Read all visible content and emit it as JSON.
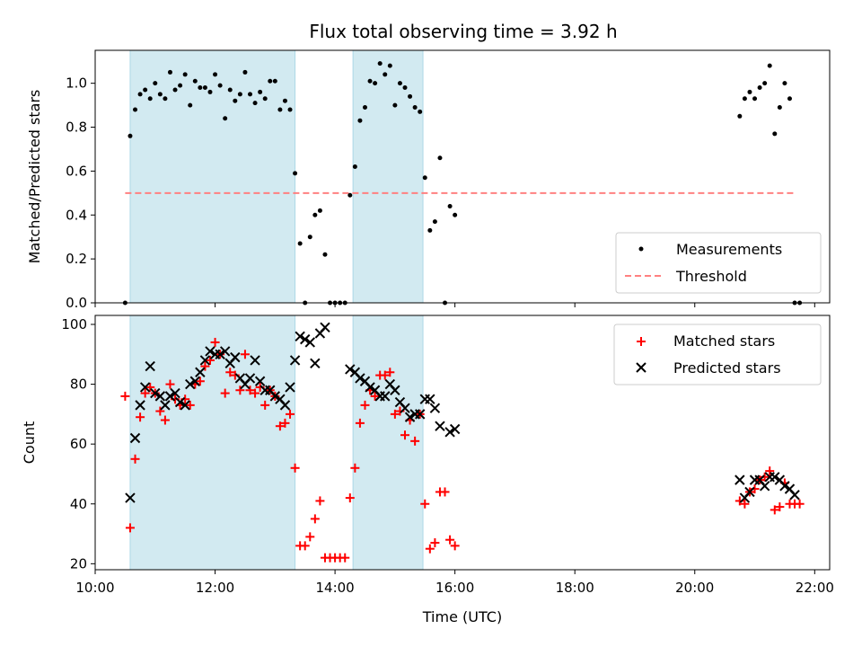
{
  "colors": {
    "band": "#add8e6",
    "threshold": "#ff8080",
    "matched": "#ff0000",
    "predicted": "#000000",
    "measurement": "#000000"
  },
  "chart_data": [
    {
      "type": "scatter",
      "title": "Flux total observing time = 3.92 h",
      "xlabel": "",
      "ylabel": "Matched/Predicted stars",
      "xlim": [
        "10:00",
        "22:15"
      ],
      "ylim": [
        0,
        1.15
      ],
      "yticks": [
        "0.0",
        "0.2",
        "0.4",
        "0.6",
        "0.8",
        "1.0"
      ],
      "legend_position": "lower-right",
      "observing_windows": [
        [
          "10:35",
          "13:20"
        ],
        [
          "14:18",
          "15:28"
        ]
      ],
      "threshold": {
        "name": "Threshold",
        "y": 0.5,
        "x_range": [
          "10:30",
          "21:40"
        ]
      },
      "series": [
        {
          "name": "Measurements",
          "points": [
            [
              "10:30",
              0.0
            ],
            [
              "10:35",
              0.76
            ],
            [
              "10:40",
              0.88
            ],
            [
              "10:45",
              0.95
            ],
            [
              "10:50",
              0.97
            ],
            [
              "10:55",
              0.93
            ],
            [
              "11:00",
              1.0
            ],
            [
              "11:05",
              0.95
            ],
            [
              "11:10",
              0.93
            ],
            [
              "11:15",
              1.05
            ],
            [
              "11:20",
              0.97
            ],
            [
              "11:25",
              0.99
            ],
            [
              "11:30",
              1.04
            ],
            [
              "11:35",
              0.9
            ],
            [
              "11:40",
              1.01
            ],
            [
              "11:45",
              0.98
            ],
            [
              "11:50",
              0.98
            ],
            [
              "11:55",
              0.96
            ],
            [
              "12:00",
              1.04
            ],
            [
              "12:05",
              0.99
            ],
            [
              "12:10",
              0.84
            ],
            [
              "12:15",
              0.97
            ],
            [
              "12:20",
              0.92
            ],
            [
              "12:25",
              0.95
            ],
            [
              "12:30",
              1.05
            ],
            [
              "12:35",
              0.95
            ],
            [
              "12:40",
              0.91
            ],
            [
              "12:45",
              0.96
            ],
            [
              "12:50",
              0.93
            ],
            [
              "12:55",
              1.01
            ],
            [
              "13:00",
              1.01
            ],
            [
              "13:05",
              0.88
            ],
            [
              "13:10",
              0.92
            ],
            [
              "13:15",
              0.88
            ],
            [
              "13:20",
              0.59
            ],
            [
              "13:25",
              0.27
            ],
            [
              "13:30",
              0.0
            ],
            [
              "13:35",
              0.3
            ],
            [
              "13:40",
              0.4
            ],
            [
              "13:45",
              0.42
            ],
            [
              "13:50",
              0.22
            ],
            [
              "13:55",
              0.0
            ],
            [
              "14:00",
              0.0
            ],
            [
              "14:05",
              0.0
            ],
            [
              "14:10",
              0.0
            ],
            [
              "14:15",
              0.49
            ],
            [
              "14:20",
              0.62
            ],
            [
              "14:25",
              0.83
            ],
            [
              "14:30",
              0.89
            ],
            [
              "14:35",
              1.01
            ],
            [
              "14:40",
              1.0
            ],
            [
              "14:45",
              1.09
            ],
            [
              "14:50",
              1.04
            ],
            [
              "14:55",
              1.08
            ],
            [
              "15:00",
              0.9
            ],
            [
              "15:05",
              1.0
            ],
            [
              "15:10",
              0.98
            ],
            [
              "15:15",
              0.94
            ],
            [
              "15:20",
              0.89
            ],
            [
              "15:25",
              0.87
            ],
            [
              "15:30",
              0.57
            ],
            [
              "15:35",
              0.33
            ],
            [
              "15:40",
              0.37
            ],
            [
              "15:45",
              0.66
            ],
            [
              "15:50",
              0.0
            ],
            [
              "15:55",
              0.44
            ],
            [
              "16:00",
              0.4
            ],
            [
              "20:45",
              0.85
            ],
            [
              "20:50",
              0.93
            ],
            [
              "20:55",
              0.96
            ],
            [
              "21:00",
              0.93
            ],
            [
              "21:05",
              0.98
            ],
            [
              "21:10",
              1.0
            ],
            [
              "21:15",
              1.08
            ],
            [
              "21:20",
              0.77
            ],
            [
              "21:25",
              0.89
            ],
            [
              "21:30",
              1.0
            ],
            [
              "21:35",
              0.93
            ],
            [
              "21:40",
              0.0
            ],
            [
              "21:45",
              0.0
            ]
          ]
        }
      ]
    },
    {
      "type": "scatter",
      "title": "",
      "xlabel": "Time (UTC)",
      "ylabel": "Count",
      "xlim": [
        "10:00",
        "22:15"
      ],
      "ylim": [
        18,
        103
      ],
      "xticks": [
        "10:00",
        "12:00",
        "14:00",
        "16:00",
        "18:00",
        "20:00",
        "22:00"
      ],
      "yticks": [
        "20",
        "40",
        "60",
        "80",
        "100"
      ],
      "legend_position": "upper-right",
      "observing_windows": [
        [
          "10:35",
          "13:20"
        ],
        [
          "14:18",
          "15:28"
        ]
      ],
      "series": [
        {
          "name": "Matched stars",
          "marker": "plus",
          "points": [
            [
              "10:30",
              76
            ],
            [
              "10:35",
              32
            ],
            [
              "10:40",
              55
            ],
            [
              "10:45",
              69
            ],
            [
              "10:50",
              77
            ],
            [
              "10:55",
              79
            ],
            [
              "11:00",
              77
            ],
            [
              "11:05",
              71
            ],
            [
              "11:10",
              68
            ],
            [
              "11:15",
              80
            ],
            [
              "11:20",
              75
            ],
            [
              "11:25",
              73
            ],
            [
              "11:30",
              75
            ],
            [
              "11:35",
              73
            ],
            [
              "11:40",
              80
            ],
            [
              "11:45",
              81
            ],
            [
              "11:50",
              86
            ],
            [
              "11:55",
              88
            ],
            [
              "12:00",
              94
            ],
            [
              "12:05",
              90
            ],
            [
              "12:10",
              77
            ],
            [
              "12:15",
              84
            ],
            [
              "12:20",
              83
            ],
            [
              "12:25",
              78
            ],
            [
              "12:30",
              90
            ],
            [
              "12:35",
              78
            ],
            [
              "12:40",
              77
            ],
            [
              "12:45",
              79
            ],
            [
              "12:50",
              73
            ],
            [
              "12:55",
              78
            ],
            [
              "13:00",
              76
            ],
            [
              "13:05",
              66
            ],
            [
              "13:10",
              67
            ],
            [
              "13:15",
              70
            ],
            [
              "13:20",
              52
            ],
            [
              "13:25",
              26
            ],
            [
              "13:30",
              26
            ],
            [
              "13:35",
              29
            ],
            [
              "13:40",
              35
            ],
            [
              "13:45",
              41
            ],
            [
              "13:50",
              22
            ],
            [
              "13:55",
              22
            ],
            [
              "14:00",
              22
            ],
            [
              "14:05",
              22
            ],
            [
              "14:10",
              22
            ],
            [
              "14:15",
              42
            ],
            [
              "14:20",
              52
            ],
            [
              "14:25",
              67
            ],
            [
              "14:30",
              73
            ],
            [
              "14:35",
              78
            ],
            [
              "14:40",
              76
            ],
            [
              "14:45",
              83
            ],
            [
              "14:50",
              83
            ],
            [
              "14:55",
              84
            ],
            [
              "15:00",
              70
            ],
            [
              "15:05",
              71
            ],
            [
              "15:10",
              63
            ],
            [
              "15:15",
              68
            ],
            [
              "15:20",
              61
            ],
            [
              "15:25",
              70
            ],
            [
              "15:30",
              40
            ],
            [
              "15:35",
              25
            ],
            [
              "15:40",
              27
            ],
            [
              "15:45",
              44
            ],
            [
              "15:50",
              44
            ],
            [
              "15:55",
              28
            ],
            [
              "16:00",
              26
            ],
            [
              "20:45",
              41
            ],
            [
              "20:50",
              40
            ],
            [
              "20:55",
              44
            ],
            [
              "21:00",
              45
            ],
            [
              "21:05",
              48
            ],
            [
              "21:10",
              49
            ],
            [
              "21:15",
              51
            ],
            [
              "21:20",
              38
            ],
            [
              "21:25",
              39
            ],
            [
              "21:30",
              47
            ],
            [
              "21:35",
              40
            ],
            [
              "21:40",
              40
            ],
            [
              "21:45",
              40
            ]
          ]
        },
        {
          "name": "Predicted stars",
          "marker": "cross",
          "points": [
            [
              "10:35",
              42
            ],
            [
              "10:40",
              62
            ],
            [
              "10:45",
              73
            ],
            [
              "10:50",
              79
            ],
            [
              "10:55",
              86
            ],
            [
              "11:00",
              77
            ],
            [
              "11:05",
              76
            ],
            [
              "11:10",
              73
            ],
            [
              "11:15",
              76
            ],
            [
              "11:20",
              77
            ],
            [
              "11:25",
              74
            ],
            [
              "11:30",
              73
            ],
            [
              "11:35",
              80
            ],
            [
              "11:40",
              81
            ],
            [
              "11:45",
              84
            ],
            [
              "11:50",
              88
            ],
            [
              "11:55",
              91
            ],
            [
              "12:00",
              90
            ],
            [
              "12:05",
              90
            ],
            [
              "12:10",
              91
            ],
            [
              "12:15",
              87
            ],
            [
              "12:20",
              89
            ],
            [
              "12:25",
              82
            ],
            [
              "12:30",
              80
            ],
            [
              "12:35",
              82
            ],
            [
              "12:40",
              88
            ],
            [
              "12:45",
              81
            ],
            [
              "12:50",
              78
            ],
            [
              "12:55",
              78
            ],
            [
              "13:00",
              76
            ],
            [
              "13:05",
              75
            ],
            [
              "13:10",
              73
            ],
            [
              "13:15",
              79
            ],
            [
              "13:20",
              88
            ],
            [
              "13:25",
              96
            ],
            [
              "13:30",
              95
            ],
            [
              "13:35",
              94
            ],
            [
              "13:40",
              87
            ],
            [
              "13:45",
              97
            ],
            [
              "13:50",
              99
            ],
            [
              "14:15",
              85
            ],
            [
              "14:20",
              84
            ],
            [
              "14:25",
              82
            ],
            [
              "14:30",
              81
            ],
            [
              "14:35",
              79
            ],
            [
              "14:40",
              78
            ],
            [
              "14:45",
              76
            ],
            [
              "14:50",
              76
            ],
            [
              "14:55",
              80
            ],
            [
              "15:00",
              78
            ],
            [
              "15:05",
              74
            ],
            [
              "15:10",
              72
            ],
            [
              "15:15",
              69
            ],
            [
              "15:20",
              70
            ],
            [
              "15:25",
              70
            ],
            [
              "15:30",
              75
            ],
            [
              "15:35",
              75
            ],
            [
              "15:40",
              72
            ],
            [
              "15:45",
              66
            ],
            [
              "15:55",
              64
            ],
            [
              "16:00",
              65
            ],
            [
              "20:45",
              48
            ],
            [
              "20:50",
              42
            ],
            [
              "20:55",
              44
            ],
            [
              "21:00",
              48
            ],
            [
              "21:05",
              48
            ],
            [
              "21:10",
              46
            ],
            [
              "21:15",
              49
            ],
            [
              "21:20",
              49
            ],
            [
              "21:25",
              48
            ],
            [
              "21:30",
              46
            ],
            [
              "21:35",
              45
            ],
            [
              "21:40",
              43
            ]
          ]
        }
      ]
    }
  ]
}
